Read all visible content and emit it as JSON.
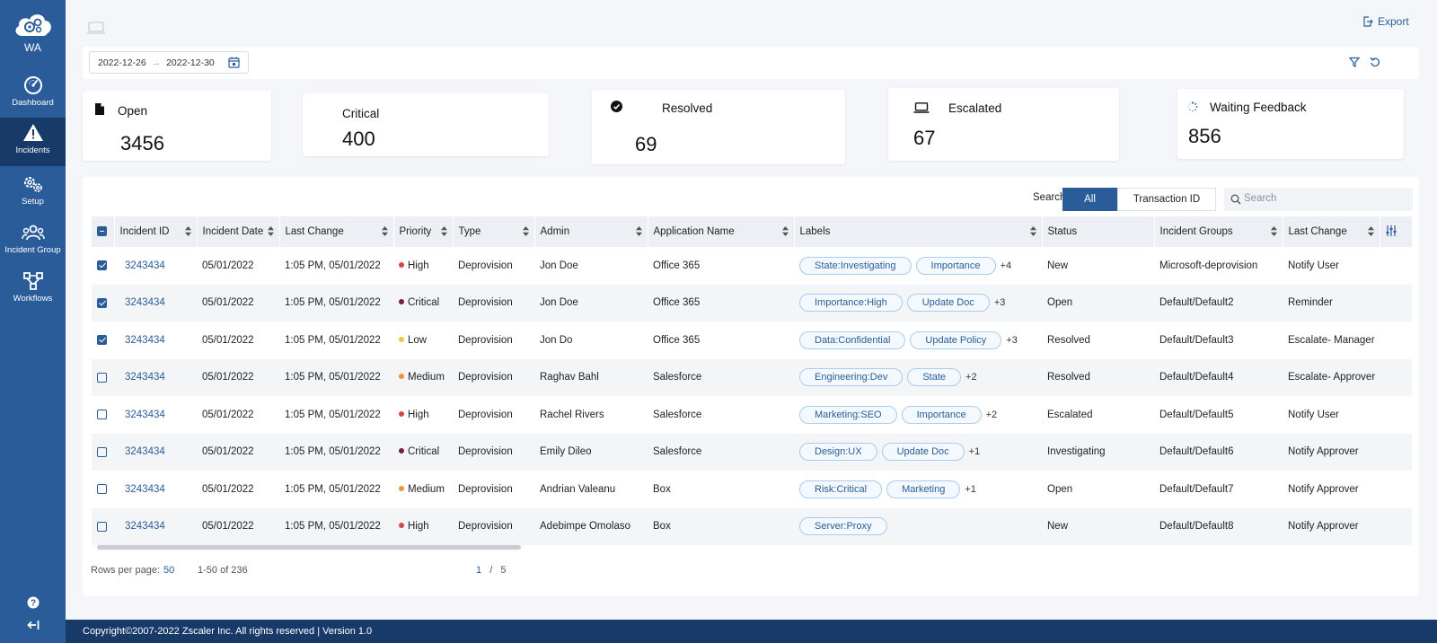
{
  "sidebar": {
    "logo_text": "WA",
    "items": [
      {
        "label": "Dashboard",
        "icon": "dashboard-gauge-icon"
      },
      {
        "label": "Incidents",
        "icon": "warning-triangle-icon",
        "active": true
      },
      {
        "label": "Setup",
        "icon": "gears-icon"
      },
      {
        "label": "Incident Group",
        "icon": "users-group-icon"
      },
      {
        "label": "Workflows",
        "icon": "workflow-nodes-icon"
      }
    ]
  },
  "toolbar": {
    "export_label": "Export"
  },
  "filter": {
    "date_from": "2022-12-26",
    "date_to": "2022-12-30"
  },
  "cards": [
    {
      "title": "Open",
      "value": "3456",
      "icon": "document-icon"
    },
    {
      "title": "Critical",
      "value": "400",
      "icon": ""
    },
    {
      "title": "Resolved",
      "value": "69",
      "icon": "check-circle-icon"
    },
    {
      "title": "Escalated",
      "value": "67",
      "icon": "laptop-icon"
    },
    {
      "title": "Waiting Feedback",
      "value": "856",
      "icon": "spinner-icon"
    }
  ],
  "search": {
    "label": "Search for:",
    "options": [
      "All",
      "Transaction ID"
    ],
    "selected": "All",
    "placeholder": "Search"
  },
  "table": {
    "columns": [
      "Incident ID",
      "Incident Date",
      "Last Change",
      "Priority",
      "Type",
      "Admin",
      "Application Name",
      "Labels",
      "Status",
      "Incident Groups",
      "Last Change"
    ],
    "rows": [
      {
        "checked": true,
        "id": "3243434",
        "date": "05/01/2022",
        "last_change": "1:05 PM, 05/01/2022",
        "priority": "High",
        "type": "Deprovision",
        "admin": "Jon Doe",
        "app": "Office 365",
        "labels": [
          "State:Investigating",
          "Importance"
        ],
        "more": "+4",
        "status": "New",
        "group": "Microsoft-deprovision",
        "action": "Notify User"
      },
      {
        "checked": true,
        "id": "3243434",
        "date": "05/01/2022",
        "last_change": "1:05 PM, 05/01/2022",
        "priority": "Critical",
        "type": "Deprovision",
        "admin": "Jon Doe",
        "app": "Office 365",
        "labels": [
          "Importance:High",
          "Update Doc"
        ],
        "more": "+3",
        "status": "Open",
        "group": "Default/Default2",
        "action": "Reminder"
      },
      {
        "checked": true,
        "id": "3243434",
        "date": "05/01/2022",
        "last_change": "1:05 PM, 05/01/2022",
        "priority": "Low",
        "type": "Deprovision",
        "admin": "Jon Do",
        "app": "Office 365",
        "labels": [
          "Data:Confidential",
          "Update Policy"
        ],
        "more": "+3",
        "status": "Resolved",
        "group": "Default/Default3",
        "action": "Escalate- Manager"
      },
      {
        "checked": false,
        "id": "3243434",
        "date": "05/01/2022",
        "last_change": "1:05 PM, 05/01/2022",
        "priority": "Medium",
        "type": "Deprovision",
        "admin": "Raghav Bahl",
        "app": "Salesforce",
        "labels": [
          "Engineering:Dev",
          "State"
        ],
        "more": "+2",
        "status": "Resolved",
        "group": "Default/Default4",
        "action": "Escalate- Approver"
      },
      {
        "checked": false,
        "id": "3243434",
        "date": "05/01/2022",
        "last_change": "1:05 PM, 05/01/2022",
        "priority": "High",
        "type": "Deprovision",
        "admin": "Rachel Rivers",
        "app": "Salesforce",
        "labels": [
          "Marketing:SEO",
          "Importance"
        ],
        "more": "+2",
        "status": "Escalated",
        "group": "Default/Default5",
        "action": "Notify User"
      },
      {
        "checked": false,
        "id": "3243434",
        "date": "05/01/2022",
        "last_change": "1:05 PM, 05/01/2022",
        "priority": "Critical",
        "type": "Deprovision",
        "admin": "Emily Dileo",
        "app": "Salesforce",
        "labels": [
          "Design:UX",
          "Update Doc"
        ],
        "more": "+1",
        "status": "Investigating",
        "group": "Default/Default6",
        "action": "Notify Approver"
      },
      {
        "checked": false,
        "id": "3243434",
        "date": "05/01/2022",
        "last_change": "1:05 PM, 05/01/2022",
        "priority": "Medium",
        "type": "Deprovision",
        "admin": "Andrian Valeanu",
        "app": "Box",
        "labels": [
          "Risk:Critical",
          "Marketing"
        ],
        "more": "+1",
        "status": "Open",
        "group": "Default/Default7",
        "action": "Notify Approver"
      },
      {
        "checked": false,
        "id": "3243434",
        "date": "05/01/2022",
        "last_change": "1:05 PM, 05/01/2022",
        "priority": "High",
        "type": "Deprovision",
        "admin": "Adebimpe Omolaso",
        "app": "Box",
        "labels": [
          "Server:Proxy"
        ],
        "more": "",
        "status": "New",
        "group": "Default/Default8",
        "action": "Notify Approver"
      }
    ]
  },
  "priority_colors": {
    "High": "#d64545",
    "Critical": "#7a1f3d",
    "Low": "#f2c14e",
    "Medium": "#f0923a"
  },
  "pagination": {
    "rows_per_page_label": "Rows per page:",
    "rows_per_page": "50",
    "range": "1-50 of 236",
    "current_page": "1",
    "separator": "/",
    "total_pages": "5"
  },
  "footer": {
    "text": "Copyright©2007-2022 Zscaler Inc. All rights reserved | Version 1.0"
  },
  "colors": {
    "sidebar": "#2a5c9a",
    "sidebar_active": "#173a68",
    "accent": "#2a5c9a"
  }
}
